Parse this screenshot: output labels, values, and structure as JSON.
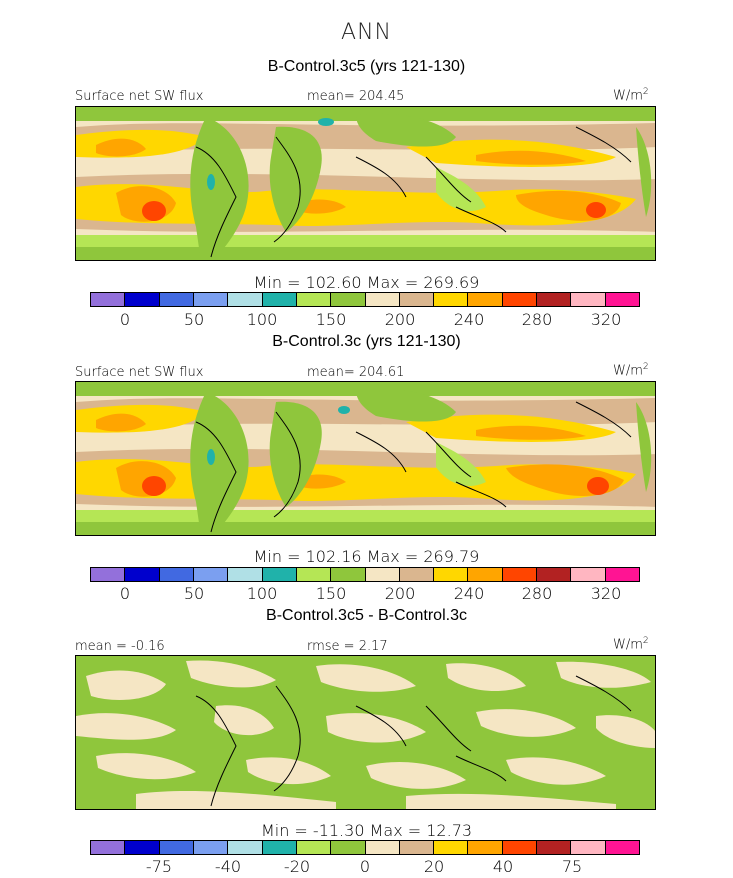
{
  "figure": {
    "season": "ANN",
    "units_label": "W/m",
    "units_sup": "2"
  },
  "panels": [
    {
      "title": "B-Control.3c5 (yrs 121-130)",
      "left_label": "Surface net SW flux",
      "center_label": "mean= 204.45",
      "minmax": "Min = 102.60 Max = 269.69",
      "colorbar_ticks": [
        "0",
        "50",
        "100",
        "150",
        "200",
        "240",
        "280",
        "320"
      ]
    },
    {
      "title": "B-Control.3c (yrs 121-130)",
      "left_label": "Surface net SW flux",
      "center_label": "mean= 204.61",
      "minmax": "Min = 102.16 Max = 269.79",
      "colorbar_ticks": [
        "0",
        "50",
        "100",
        "150",
        "200",
        "240",
        "280",
        "320"
      ]
    },
    {
      "title": "B-Control.3c5 - B-Control.3c",
      "left_label": "mean = -0.16",
      "center_label": "rmse = 2.17",
      "minmax": "Min = -11.30 Max = 12.73",
      "colorbar_ticks": [
        "-75",
        "-40",
        "-20",
        "0",
        "20",
        "40",
        "75"
      ]
    }
  ],
  "colorbar_colors": [
    "#9370db",
    "#0000cd",
    "#4169e1",
    "#7b9ff0",
    "#b0e0e6",
    "#20b2aa",
    "#b5e655",
    "#8fc63c",
    "#f5e6c4",
    "#dab68f",
    "#ffd700",
    "#ffa500",
    "#ff4500",
    "#b22222",
    "#ffb6c1",
    "#ff1493"
  ],
  "map_colors": {
    "green": "#8fc63c",
    "light_green": "#b5e655",
    "cream": "#f5e6c4",
    "tan": "#dab68f",
    "yellow": "#ffd700",
    "orange": "#ffa500",
    "red_orange": "#ff4500",
    "teal": "#20b2aa"
  }
}
